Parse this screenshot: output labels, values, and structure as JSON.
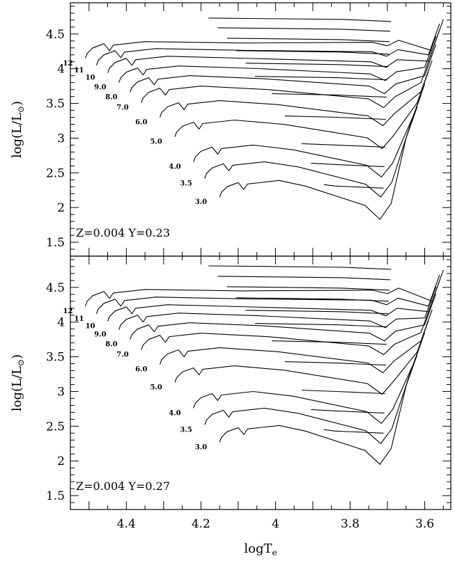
{
  "chart_data": [
    {
      "type": "line",
      "title": "",
      "panel_label": "Z=0.004   Y=0.23",
      "xlabel": "logT",
      "xlabel_subscript": "e",
      "ylabel": "log(L/L",
      "ylabel_suffix": ")",
      "xlim": [
        4.55,
        3.53
      ],
      "ylim": [
        1.3,
        4.95
      ],
      "x_ticks": [
        "4.4",
        "4.2",
        "4",
        "3.8",
        "3.6"
      ],
      "y_ticks": [
        "1.5",
        "2",
        "2.5",
        "3",
        "3.5",
        "4",
        "4.5"
      ],
      "series": [
        {
          "name": "12",
          "tams_x": 4.48,
          "tams_y": 4.32,
          "end_x": 3.55,
          "end_y": 4.71
        },
        {
          "name": "11",
          "tams_x": 4.45,
          "tams_y": 4.22,
          "end_x": 3.56,
          "end_y": 4.65
        },
        {
          "name": "10",
          "tams_x": 4.42,
          "tams_y": 4.11,
          "end_x": 3.56,
          "end_y": 4.56
        },
        {
          "name": "9.0",
          "tams_x": 4.39,
          "tams_y": 3.97,
          "end_x": 3.57,
          "end_y": 4.47
        },
        {
          "name": "8.0",
          "tams_x": 4.36,
          "tams_y": 3.83,
          "end_x": 3.57,
          "end_y": 4.35
        },
        {
          "name": "7.0",
          "tams_x": 4.33,
          "tams_y": 3.68,
          "end_x": 3.58,
          "end_y": 4.25
        },
        {
          "name": "6.0",
          "tams_x": 4.28,
          "tams_y": 3.47,
          "end_x": 3.58,
          "end_y": 4.12
        },
        {
          "name": "5.0",
          "tams_x": 4.24,
          "tams_y": 3.19,
          "end_x": 3.59,
          "end_y": 3.96
        },
        {
          "name": "4.0",
          "tams_x": 4.19,
          "tams_y": 2.83,
          "end_x": 3.6,
          "end_y": 3.78
        },
        {
          "name": "3.5",
          "tams_x": 4.16,
          "tams_y": 2.59,
          "end_x": 3.61,
          "end_y": 3.62
        },
        {
          "name": "3.0",
          "tams_x": 4.12,
          "tams_y": 2.32,
          "end_x": 3.62,
          "end_y": 3.45
        }
      ]
    },
    {
      "type": "line",
      "title": "",
      "panel_label": "Z=0.004   Y=0.27",
      "xlabel": "logT",
      "xlabel_subscript": "e",
      "ylabel": "log(L/L",
      "ylabel_suffix": ")",
      "xlim": [
        4.55,
        3.53
      ],
      "ylim": [
        1.3,
        4.95
      ],
      "x_ticks": [
        "4.4",
        "4.2",
        "4",
        "3.8",
        "3.6"
      ],
      "y_ticks": [
        "1.5",
        "2",
        "2.5",
        "3",
        "3.5",
        "4",
        "4.5"
      ],
      "series": [
        {
          "name": "12",
          "tams_x": 4.48,
          "tams_y": 4.4,
          "end_x": 3.55,
          "end_y": 4.75
        },
        {
          "name": "11",
          "tams_x": 4.45,
          "tams_y": 4.29,
          "end_x": 3.56,
          "end_y": 4.68
        },
        {
          "name": "10",
          "tams_x": 4.42,
          "tams_y": 4.18,
          "end_x": 3.56,
          "end_y": 4.6
        },
        {
          "name": "9.0",
          "tams_x": 4.39,
          "tams_y": 4.06,
          "end_x": 3.57,
          "end_y": 4.51
        },
        {
          "name": "8.0",
          "tams_x": 4.36,
          "tams_y": 3.92,
          "end_x": 3.57,
          "end_y": 4.41
        },
        {
          "name": "7.0",
          "tams_x": 4.33,
          "tams_y": 3.77,
          "end_x": 3.58,
          "end_y": 4.3
        },
        {
          "name": "6.0",
          "tams_x": 4.28,
          "tams_y": 3.56,
          "end_x": 3.58,
          "end_y": 4.18
        },
        {
          "name": "5.0",
          "tams_x": 4.24,
          "tams_y": 3.3,
          "end_x": 3.59,
          "end_y": 4.02
        },
        {
          "name": "4.0",
          "tams_x": 4.19,
          "tams_y": 2.93,
          "end_x": 3.6,
          "end_y": 3.85
        },
        {
          "name": "3.5",
          "tams_x": 4.16,
          "tams_y": 2.69,
          "end_x": 3.61,
          "end_y": 3.7
        },
        {
          "name": "3.0",
          "tams_x": 4.12,
          "tams_y": 2.44,
          "end_x": 3.62,
          "end_y": 3.53
        }
      ]
    }
  ]
}
